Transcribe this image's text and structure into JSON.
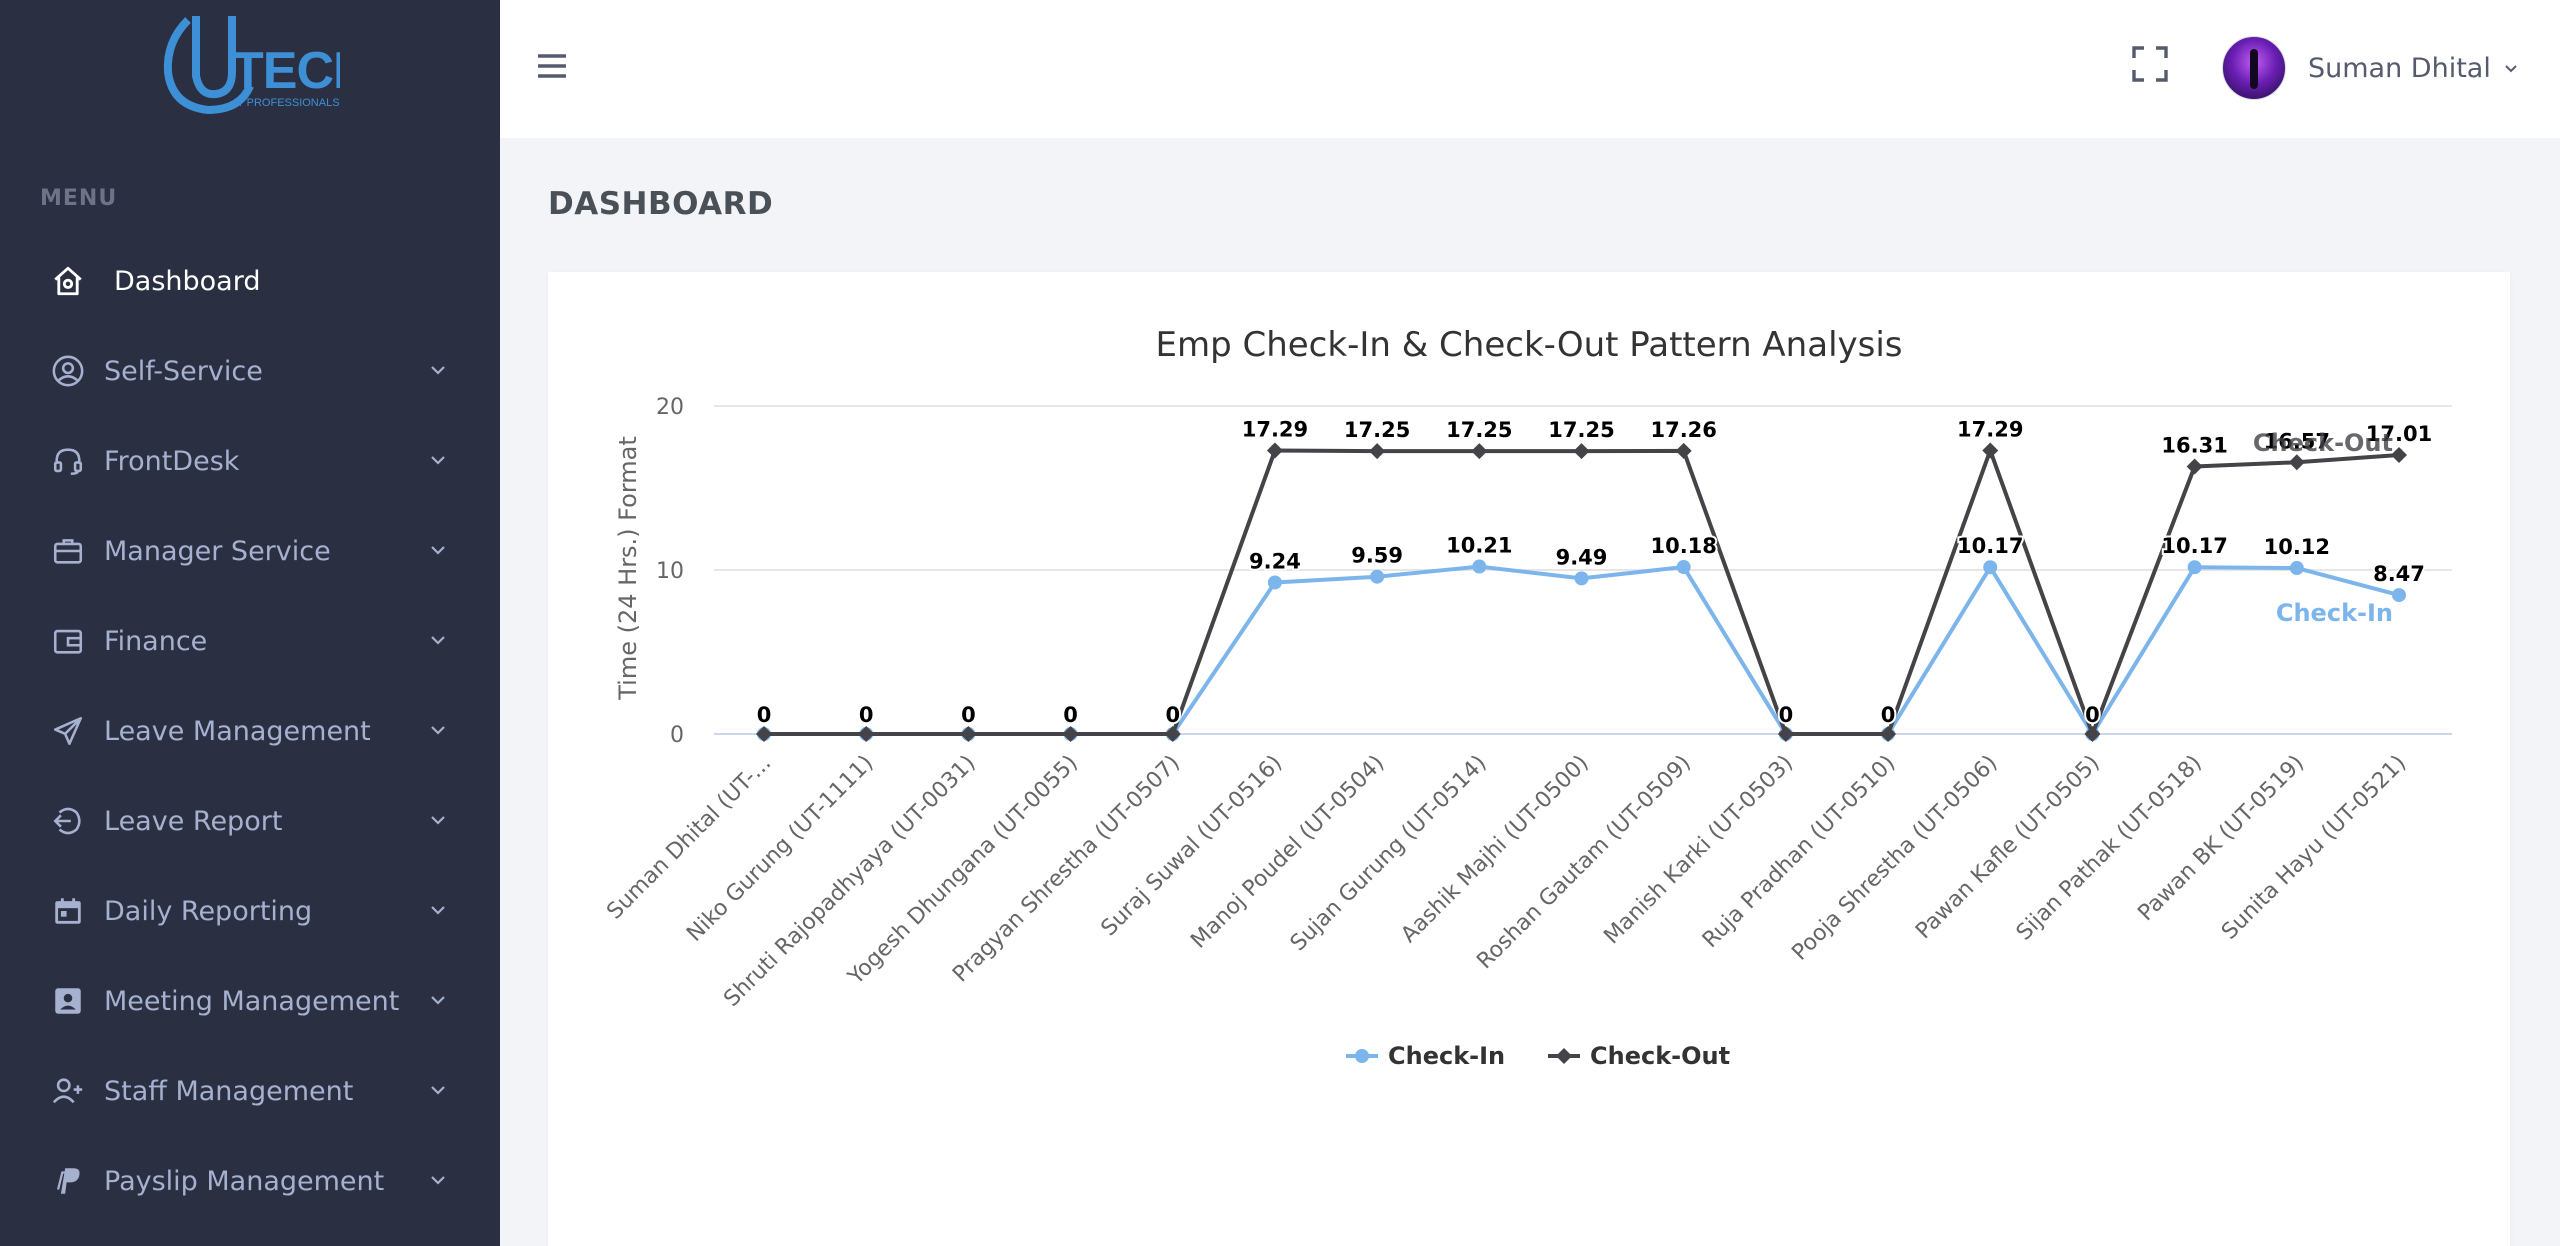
{
  "brand": {
    "logo_text": "TECH",
    "logo_sub": "IT PROFESSIONALS"
  },
  "sidebar": {
    "menu_title": "MENU",
    "items": [
      {
        "label": "Dashboard",
        "icon": "home-icon",
        "active": true
      },
      {
        "label": "Self-Service",
        "icon": "user-circle-icon"
      },
      {
        "label": "FrontDesk",
        "icon": "headset-icon"
      },
      {
        "label": "Manager Service",
        "icon": "briefcase-icon"
      },
      {
        "label": "Finance",
        "icon": "wallet-icon"
      },
      {
        "label": "Leave Management",
        "icon": "send-icon"
      },
      {
        "label": "Leave Report",
        "icon": "logout-icon"
      },
      {
        "label": "Daily Reporting",
        "icon": "calendar-icon"
      },
      {
        "label": "Meeting Management",
        "icon": "contact-card-icon"
      },
      {
        "label": "Staff Management",
        "icon": "user-plus-icon"
      },
      {
        "label": "Payslip Management",
        "icon": "paypal-icon"
      }
    ]
  },
  "header": {
    "user_name": "Suman Dhital"
  },
  "page": {
    "title": "DASHBOARD"
  },
  "chart_data": {
    "type": "line",
    "title": "Emp Check-In & Check-Out Pattern Analysis",
    "ylabel": "Time (24 Hrs.) Format",
    "xlabel": "",
    "ylim": [
      0,
      20
    ],
    "yticks": [
      0,
      10,
      20
    ],
    "grid": true,
    "legend": "bottom-center",
    "categories": [
      "Suman Dhital (UT-...",
      "Niko Gurung (UT-1111)",
      "Shruti Rajopadhyaya (UT-0031)",
      "Yogesh Dhungana (UT-0055)",
      "Pragyan Shrestha (UT-0507)",
      "Suraj Suwal (UT-0516)",
      "Manoj Poudel (UT-0504)",
      "Sujan Gurung (UT-0514)",
      "Aashik Majhi (UT-0500)",
      "Roshan Gautam (UT-0509)",
      "Manish Karki (UT-0503)",
      "Ruja Pradhan (UT-0510)",
      "Pooja Shrestha (UT-0506)",
      "Pawan Kafle (UT-0505)",
      "Sijan Pathak (UT-0518)",
      "Pawan BK (UT-0519)",
      "Sunita Hayu (UT-0521)"
    ],
    "series": [
      {
        "name": "Check-In",
        "color": "#7cb5ec",
        "marker": "circle",
        "values": [
          0,
          0,
          0,
          0,
          0,
          9.24,
          9.59,
          10.21,
          9.49,
          10.18,
          0,
          0,
          10.17,
          0,
          10.17,
          10.12,
          8.47
        ]
      },
      {
        "name": "Check-Out",
        "color": "#434348",
        "marker": "diamond",
        "values": [
          0,
          0,
          0,
          0,
          0,
          17.29,
          17.25,
          17.25,
          17.25,
          17.26,
          0,
          0,
          17.29,
          0,
          16.31,
          16.57,
          17.01
        ]
      }
    ]
  }
}
